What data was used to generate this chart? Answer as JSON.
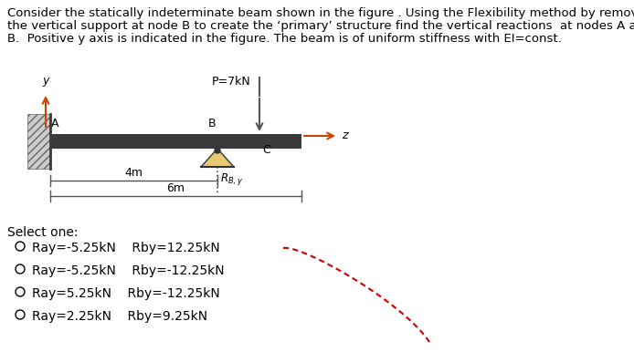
{
  "title_line1": "Consider the statically indeterminate beam shown in the figure . Using the Flexibility method by removing",
  "title_line2": "the vertical support at node B to create the ‘primary’ structure find the vertical reactions  at nodes A and",
  "title_line3": "B.  Positive y axis is indicated in the figure. The beam is of uniform stiffness with EI=const.",
  "select_one": "Select one:",
  "options": [
    "Ray=-5.25kN    Rby=12.25kN",
    "Ray=-5.25kN    Rby=-12.25kN",
    "Ray=5.25kN    Rby=-12.25kN",
    "Ray=2.25kN    Rby=9.25kN"
  ],
  "label_4m": "4m",
  "label_6m": "6m",
  "label_P": "P=7kN",
  "label_RBy": "R",
  "label_y": "y",
  "label_z": "z",
  "label_A": "A",
  "label_B": "B",
  "label_C": "C",
  "beam_color": "#3a3a3a",
  "wall_hatch_color": "#888888",
  "support_face_color": "#e8c870",
  "support_edge_color": "#333333",
  "y_arrow_color": "#cc4400",
  "z_arrow_color": "#cc4400",
  "down_arrow_color": "#555555",
  "dim_color": "#555555",
  "red_curve_color": "#cc0000",
  "bg_color": "#ffffff",
  "font_size_title": 9.5,
  "font_size_label": 9.5,
  "font_size_dim": 9,
  "font_size_option": 10
}
